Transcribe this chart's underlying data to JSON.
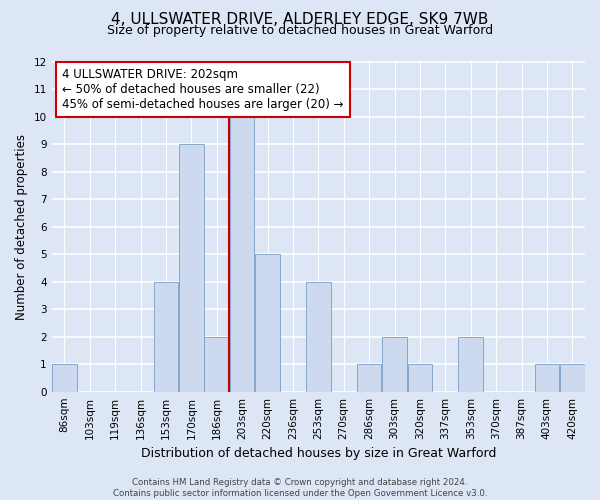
{
  "title": "4, ULLSWATER DRIVE, ALDERLEY EDGE, SK9 7WB",
  "subtitle": "Size of property relative to detached houses in Great Warford",
  "xlabel": "Distribution of detached houses by size in Great Warford",
  "ylabel": "Number of detached properties",
  "footer_lines": [
    "Contains HM Land Registry data © Crown copyright and database right 2024.",
    "Contains public sector information licensed under the Open Government Licence v3.0."
  ],
  "bins": [
    "86sqm",
    "103sqm",
    "119sqm",
    "136sqm",
    "153sqm",
    "170sqm",
    "186sqm",
    "203sqm",
    "220sqm",
    "236sqm",
    "253sqm",
    "270sqm",
    "286sqm",
    "303sqm",
    "320sqm",
    "337sqm",
    "353sqm",
    "370sqm",
    "387sqm",
    "403sqm",
    "420sqm"
  ],
  "counts": [
    1,
    0,
    0,
    0,
    4,
    9,
    2,
    10,
    5,
    0,
    4,
    0,
    1,
    2,
    1,
    0,
    2,
    0,
    0,
    1,
    1
  ],
  "bar_color": "#ccd9ee",
  "bar_edge_color": "#7a9fc4",
  "subject_line_color": "#cc0000",
  "subject_bin_index": 7,
  "annotation_text": "4 ULLSWATER DRIVE: 202sqm\n← 50% of detached houses are smaller (22)\n45% of semi-detached houses are larger (20) →",
  "annotation_box_edge_color": "#cc0000",
  "annotation_box_face_color": "#ffffff",
  "ylim": [
    0,
    12
  ],
  "yticks": [
    0,
    1,
    2,
    3,
    4,
    5,
    6,
    7,
    8,
    9,
    10,
    11,
    12
  ],
  "bg_color": "#dce6f5",
  "plot_bg_color": "#dce6f5",
  "grid_color": "#ffffff",
  "title_fontsize": 11,
  "subtitle_fontsize": 9,
  "xlabel_fontsize": 9,
  "ylabel_fontsize": 8.5,
  "tick_fontsize": 7.5,
  "annotation_fontsize": 8.5
}
